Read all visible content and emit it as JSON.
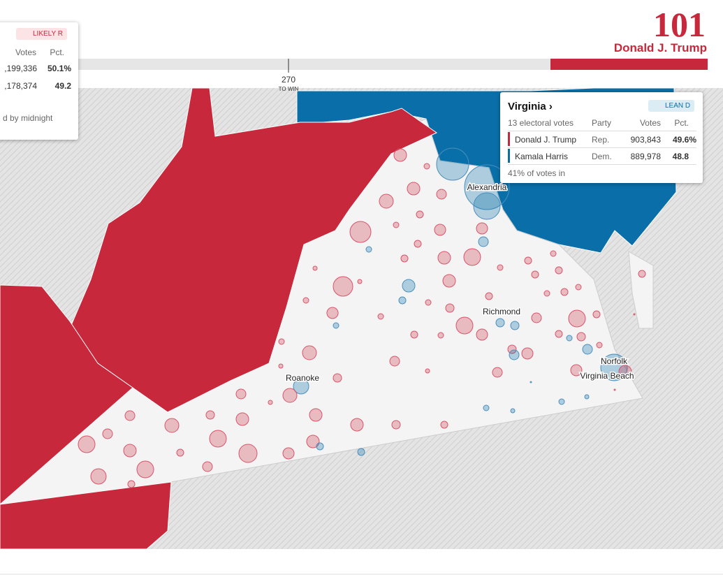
{
  "top_card": {
    "rating": "LIKELY R",
    "columns": [
      "Votes",
      "Pct."
    ],
    "rows": [
      [
        ",199,336",
        "50.1%"
      ],
      [
        ",178,374",
        "49.2"
      ]
    ],
    "note": "d by midnight"
  },
  "tally": {
    "electoral_votes": "101",
    "candidate": "Donald J. Trump",
    "threshold": "270",
    "threshold_label": "TO WIN"
  },
  "state_card": {
    "title": "Virginia ›",
    "rating": "LEAN D",
    "subtitle": "13 electoral votes",
    "columns": [
      "Party",
      "Votes",
      "Pct."
    ],
    "rows": [
      [
        "Donald J. Trump",
        "Rep.",
        "903,843",
        "49.6%"
      ],
      [
        "Kamala Harris",
        "Dem.",
        "889,978",
        "48.8"
      ]
    ],
    "footer": "41% of votes in"
  },
  "cities": [
    "Alexandria",
    "Richmond",
    "Roanoke",
    "Norfolk",
    "Virginia Beach"
  ]
}
